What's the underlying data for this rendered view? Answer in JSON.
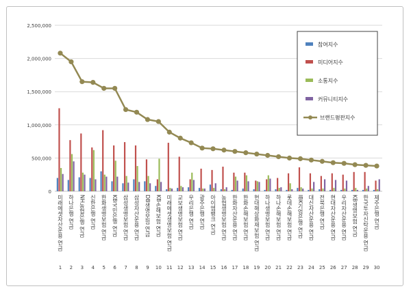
{
  "chart_data": {
    "type": "bar",
    "title": "",
    "xlabel": "",
    "ylabel": "",
    "ylim": [
      0,
      2500000
    ],
    "yticks": [
      "0",
      "500,000",
      "1,000,000",
      "1,500,000",
      "2,000,000",
      "2,500,000"
    ],
    "grid": true,
    "legend_position": "right",
    "categories": [
      "미래에셋자산운용 연금",
      "하나은행 연금",
      "NH농협은행 연금",
      "신한은행 연금",
      "한화생명보험 연금",
      "KB국민은행 연금",
      "삼성생명보험 연금",
      "삼성자산운용 연금",
      "DB생명보험 연금",
      "KB손해보험 연금",
      "미래에셋생명보험 연금",
      "교보생명보험 연금",
      "우리은행 연금",
      "광주은행 연금",
      "아이엠뱅크 연금",
      "농협생명보험 연금",
      "한화자산운용 연금",
      "한화손해보험 연금",
      "현대해상화재보험 연금",
      "하나생명보험 연금",
      "하나손해보험 연금",
      "롯데손해보험 연금",
      "IBK기업은행 연금",
      "대신자산운용 연금",
      "전북은행 연금",
      "현대자산운용 연금",
      "우리자산운용 연금",
      "KB생명보험 연금",
      "한국투자신탁운용 연금",
      "제주은행 연금"
    ],
    "indices": [
      "1",
      "2",
      "3",
      "4",
      "5",
      "6",
      "7",
      "8",
      "9",
      "10",
      "11",
      "12",
      "13",
      "14",
      "15",
      "16",
      "17",
      "18",
      "19",
      "20",
      "21",
      "22",
      "23",
      "24",
      "25",
      "26",
      "27",
      "28",
      "29",
      "30"
    ],
    "series": [
      {
        "name": "참여지수",
        "color": "#4f81bd",
        "values": [
          200000,
          170000,
          210000,
          200000,
          300000,
          150000,
          120000,
          180000,
          150000,
          80000,
          30000,
          50000,
          60000,
          50000,
          100000,
          30000,
          20000,
          40000,
          30000,
          20000,
          30000,
          20000,
          50000,
          20000,
          30000,
          20000,
          20000,
          20000,
          20000,
          20000
        ]
      },
      {
        "name": "미디어지수",
        "color": "#c0504d",
        "values": [
          1250000,
          770000,
          870000,
          660000,
          920000,
          690000,
          740000,
          690000,
          480000,
          180000,
          730000,
          520000,
          180000,
          340000,
          320000,
          370000,
          280000,
          280000,
          160000,
          180000,
          200000,
          270000,
          360000,
          270000,
          230000,
          270000,
          250000,
          290000,
          290000,
          160000
        ]
      },
      {
        "name": "소통지수",
        "color": "#9bbb59",
        "values": [
          350000,
          560000,
          280000,
          620000,
          250000,
          460000,
          230000,
          380000,
          230000,
          490000,
          50000,
          80000,
          280000,
          40000,
          50000,
          30000,
          220000,
          240000,
          150000,
          240000,
          50000,
          120000,
          60000,
          40000,
          40000,
          50000,
          40000,
          50000,
          40000,
          30000
        ]
      },
      {
        "name": "커뮤니티지수",
        "color": "#8064a2",
        "values": [
          260000,
          450000,
          250000,
          180000,
          220000,
          220000,
          130000,
          140000,
          120000,
          140000,
          40000,
          60000,
          170000,
          40000,
          120000,
          60000,
          160000,
          150000,
          140000,
          190000,
          60000,
          30000,
          40000,
          140000,
          180000,
          170000,
          160000,
          20000,
          80000,
          180000
        ]
      }
    ],
    "line_series": {
      "name": "브랜드평판지수",
      "color": "#938953",
      "values": [
        2080000,
        1950000,
        1650000,
        1640000,
        1550000,
        1550000,
        1230000,
        1190000,
        1080000,
        1050000,
        890000,
        800000,
        730000,
        650000,
        640000,
        620000,
        600000,
        580000,
        560000,
        540000,
        520000,
        500000,
        490000,
        470000,
        450000,
        430000,
        420000,
        400000,
        390000,
        380000
      ]
    }
  }
}
